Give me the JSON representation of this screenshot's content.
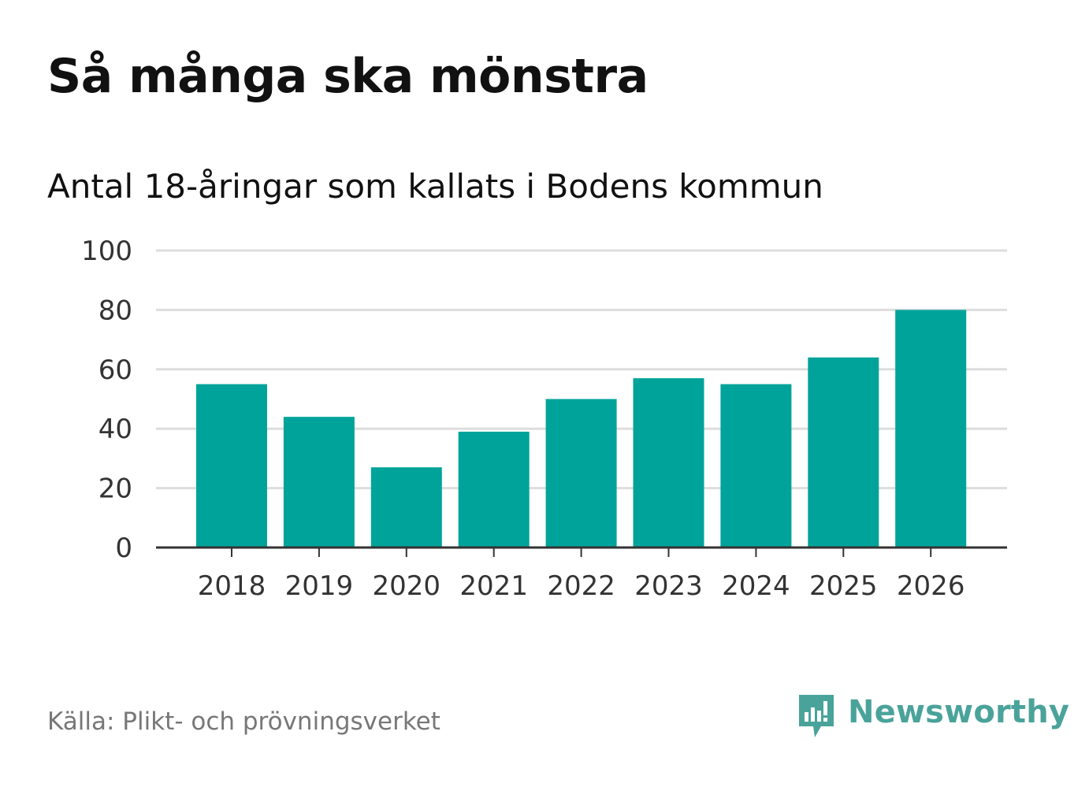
{
  "header": {
    "title": "Så många ska mönstra",
    "subtitle": "Antal 18-åringar som kallats i Bodens kommun"
  },
  "footer": {
    "source": "Källa: Plikt- och prövningsverket",
    "brand": "Newsworthy",
    "brand_icon": "bar-chart-speech-bubble-icon"
  },
  "colors": {
    "bar": "#00a39a",
    "grid": "#dddddd",
    "axis": "#333333",
    "brand": "#4aa39a"
  },
  "chart_data": {
    "type": "bar",
    "title": "Så många ska mönstra",
    "subtitle": "Antal 18-åringar som kallats i Bodens kommun",
    "xlabel": "",
    "ylabel": "",
    "categories": [
      "2018",
      "2019",
      "2020",
      "2021",
      "2022",
      "2023",
      "2024",
      "2025",
      "2026"
    ],
    "values": [
      55,
      44,
      27,
      39,
      50,
      57,
      55,
      64,
      80
    ],
    "ylim": [
      0,
      100
    ],
    "yticks": [
      0,
      20,
      40,
      60,
      80,
      100
    ],
    "grid": true,
    "legend": "none"
  }
}
